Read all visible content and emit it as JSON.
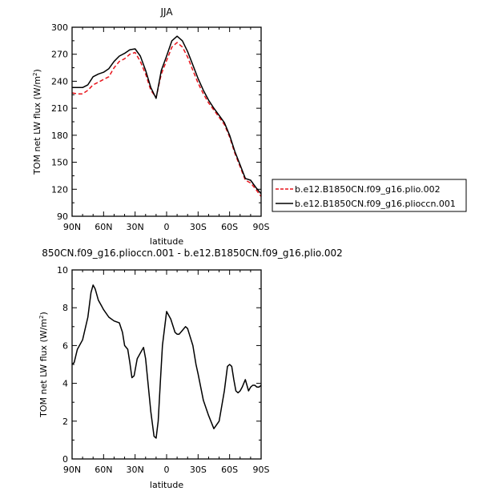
{
  "chart_data": [
    {
      "type": "line",
      "title": "JJA",
      "xlabel": "latitude",
      "ylabel": "TOM net LW flux (W/m",
      "ylabel_sup": "2",
      "ylabel_close": ")",
      "xlim": [
        90,
        -90
      ],
      "ylim": [
        90,
        300
      ],
      "xticks": [
        90,
        60,
        30,
        0,
        -30,
        -60,
        -90
      ],
      "xticklabels": [
        "90N",
        "60N",
        "30N",
        "0",
        "30S",
        "60S",
        "90S"
      ],
      "yticks": [
        90,
        120,
        150,
        180,
        210,
        240,
        270,
        300
      ],
      "yticklabels": [
        "90",
        "120",
        "150",
        "180",
        "210",
        "240",
        "270",
        "300"
      ],
      "legend_position": "right",
      "series": [
        {
          "name": "b.e12.B1850CN.f09_g16.plio.002",
          "color": "#e8141b",
          "style": "dashed",
          "x": [
            90,
            85,
            80,
            75,
            70,
            65,
            60,
            55,
            50,
            45,
            40,
            35,
            30,
            25,
            20,
            15,
            10,
            5,
            0,
            -5,
            -10,
            -15,
            -20,
            -25,
            -30,
            -35,
            -40,
            -45,
            -50,
            -55,
            -60,
            -65,
            -70,
            -75,
            -80,
            -85,
            -90
          ],
          "y": [
            227,
            226,
            226,
            230,
            236,
            239,
            242,
            245,
            255,
            262,
            265,
            270,
            272,
            262,
            248,
            230,
            222,
            248,
            263,
            278,
            283,
            278,
            267,
            252,
            238,
            226,
            216,
            208,
            200,
            192,
            178,
            160,
            145,
            130,
            127,
            120,
            112
          ]
        },
        {
          "name": "b.e12.B1850CN.f09_g16.plioccn.001",
          "color": "#000000",
          "style": "solid",
          "x": [
            90,
            85,
            80,
            75,
            70,
            65,
            60,
            55,
            50,
            45,
            40,
            35,
            30,
            25,
            20,
            15,
            10,
            5,
            0,
            -5,
            -10,
            -15,
            -20,
            -25,
            -30,
            -35,
            -40,
            -45,
            -50,
            -55,
            -60,
            -65,
            -70,
            -75,
            -80,
            -85,
            -90
          ],
          "y": [
            233,
            233,
            233,
            236,
            245,
            248,
            250,
            254,
            262,
            268,
            271,
            275,
            276,
            268,
            252,
            233,
            221,
            252,
            268,
            285,
            290,
            285,
            273,
            258,
            243,
            230,
            219,
            210,
            202,
            194,
            180,
            162,
            147,
            132,
            130,
            122,
            115
          ]
        }
      ]
    },
    {
      "type": "line",
      "title": "850CN.f09_g16.plioccn.001 - b.e12.B1850CN.f09_g16.plio.002",
      "xlabel": "latitude",
      "ylabel": "TOM net LW flux (W/m",
      "ylabel_sup": "2",
      "ylabel_close": ")",
      "xlim": [
        90,
        -90
      ],
      "ylim": [
        0,
        10
      ],
      "xticks": [
        90,
        60,
        30,
        0,
        -30,
        -60,
        -90
      ],
      "xticklabels": [
        "90N",
        "60N",
        "30N",
        "0",
        "30S",
        "60S",
        "90S"
      ],
      "yticks": [
        0,
        2,
        4,
        6,
        8,
        10
      ],
      "yticklabels": [
        "0",
        "2",
        "4",
        "6",
        "8",
        "10"
      ],
      "series": [
        {
          "color": "#000000",
          "style": "solid",
          "x": [
            90,
            88,
            85,
            80,
            75,
            72,
            70,
            68,
            65,
            62,
            60,
            55,
            50,
            45,
            42,
            40,
            37,
            35,
            33,
            31,
            28,
            25,
            22,
            20,
            15,
            12,
            10,
            8,
            6,
            4,
            0,
            -4,
            -8,
            -10,
            -12,
            -15,
            -18,
            -20,
            -25,
            -28,
            -30,
            -35,
            -40,
            -45,
            -50,
            -55,
            -58,
            -60,
            -62,
            -64,
            -66,
            -68,
            -70,
            -72,
            -75,
            -78,
            -80,
            -82,
            -84,
            -86,
            -88,
            -90
          ],
          "y": [
            5.0,
            5.1,
            5.8,
            6.3,
            7.5,
            8.8,
            9.2,
            9.0,
            8.4,
            8.1,
            7.9,
            7.5,
            7.3,
            7.2,
            6.7,
            6.0,
            5.8,
            5.1,
            4.3,
            4.4,
            5.3,
            5.6,
            5.9,
            5.3,
            2.5,
            1.2,
            1.1,
            2.0,
            4.0,
            6.0,
            7.8,
            7.4,
            6.7,
            6.6,
            6.6,
            6.8,
            7.0,
            6.9,
            6.0,
            5.0,
            4.5,
            3.1,
            2.3,
            1.6,
            2.0,
            3.6,
            4.9,
            5.0,
            4.9,
            4.2,
            3.6,
            3.5,
            3.6,
            3.8,
            4.2,
            3.6,
            3.8,
            3.9,
            3.9,
            3.8,
            3.8,
            3.9
          ]
        }
      ]
    }
  ]
}
